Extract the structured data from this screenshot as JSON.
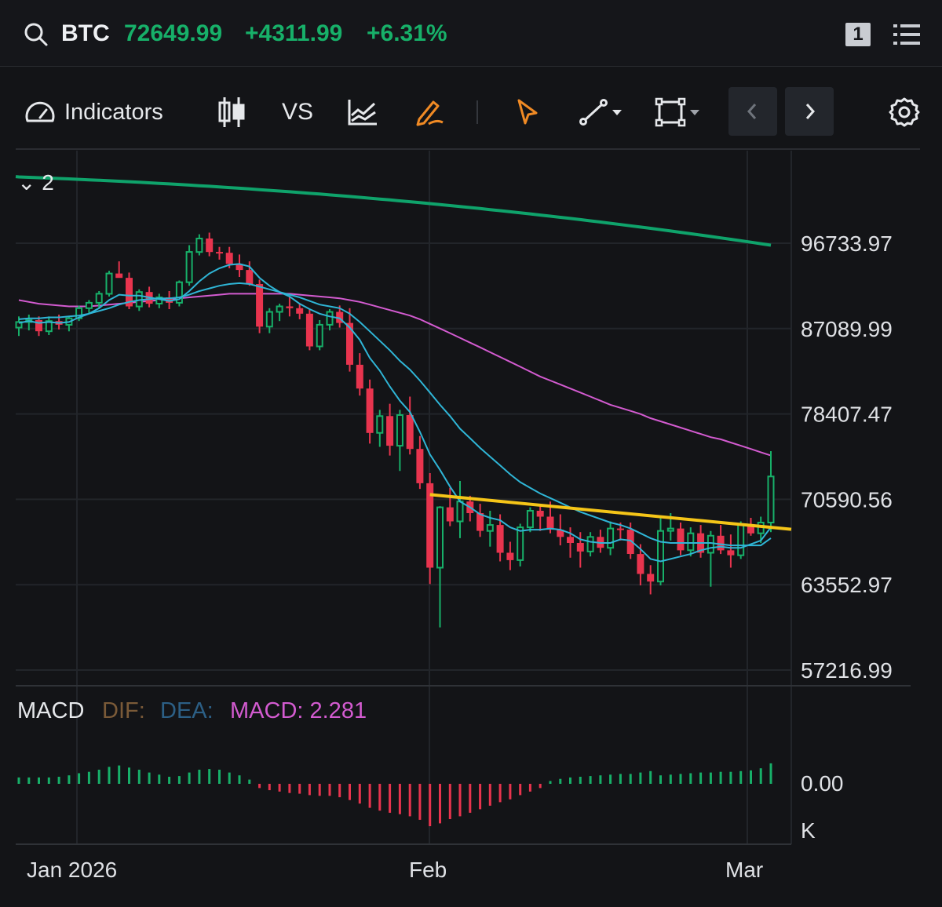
{
  "header": {
    "symbol": "BTC",
    "price": "72649.99",
    "change": "+4311.99",
    "change_pct": "+6.31%",
    "badge": "1",
    "up_color": "#17b069"
  },
  "toolbar": {
    "indicators_label": "Indicators",
    "compare_label": "VS",
    "active_tool_color": "#f08a24"
  },
  "collapse_label": "2",
  "chart_data": {
    "type": "candlestick",
    "symbol": "BTC",
    "price_axis_ticks": [
      "96733.97",
      "87089.99",
      "78407.47",
      "70590.56",
      "63552.97",
      "57216.99"
    ],
    "price_axis_scale": "log",
    "x_ticks": [
      "Jan 2026",
      "Feb",
      "Mar"
    ],
    "macd_axis_ticks": [
      "0.00",
      "K"
    ],
    "macd_legend": {
      "name": "MACD",
      "dif": "DIF:",
      "dea": "DEA:",
      "macd": "MACD: 2.281"
    },
    "colors": {
      "up": "#17b069",
      "down": "#e8344e",
      "ma_fast": "#2fb5d6",
      "ma_slow": "#d35bd0",
      "ma_long": "#0fa36b",
      "trendline": "#f5c518"
    },
    "candles": [
      [
        87200,
        88400,
        86300,
        87800
      ],
      [
        87800,
        88600,
        86900,
        88000
      ],
      [
        88000,
        88400,
        86300,
        86800
      ],
      [
        86800,
        88400,
        86400,
        87900
      ],
      [
        87900,
        88600,
        87000,
        87500
      ],
      [
        87500,
        88400,
        86800,
        88200
      ],
      [
        88200,
        89600,
        87900,
        89300
      ],
      [
        89300,
        90200,
        88700,
        89900
      ],
      [
        89900,
        91200,
        89400,
        90900
      ],
      [
        90900,
        93500,
        90600,
        93200
      ],
      [
        93200,
        94600,
        92900,
        92700
      ],
      [
        92700,
        93300,
        89200,
        89500
      ],
      [
        89500,
        91400,
        89000,
        91100
      ],
      [
        91100,
        91700,
        89400,
        89800
      ],
      [
        89800,
        90900,
        89300,
        90500
      ],
      [
        90500,
        91200,
        89200,
        89900
      ],
      [
        89900,
        92400,
        89500,
        92200
      ],
      [
        92200,
        96500,
        91800,
        95700
      ],
      [
        95700,
        97800,
        95300,
        97300
      ],
      [
        97300,
        98000,
        95200,
        95700
      ],
      [
        95700,
        96300,
        94800,
        95600
      ],
      [
        95600,
        96300,
        93800,
        94300
      ],
      [
        94300,
        95400,
        92800,
        93600
      ],
      [
        93600,
        94600,
        91800,
        92000
      ],
      [
        92000,
        92500,
        86600,
        87300
      ],
      [
        87300,
        89300,
        86600,
        88900
      ],
      [
        88900,
        89800,
        87900,
        89500
      ],
      [
        89500,
        90500,
        88400,
        89300
      ],
      [
        89300,
        89800,
        88100,
        88700
      ],
      [
        88700,
        89200,
        84800,
        85200
      ],
      [
        85200,
        88000,
        84800,
        87500
      ],
      [
        87500,
        89200,
        86900,
        88900
      ],
      [
        88900,
        89600,
        87200,
        87700
      ],
      [
        87700,
        89300,
        82600,
        83300
      ],
      [
        83300,
        84500,
        80200,
        80900
      ],
      [
        80900,
        81800,
        75600,
        76600
      ],
      [
        76600,
        78800,
        75300,
        78200
      ],
      [
        78200,
        79400,
        74500,
        75400
      ],
      [
        75400,
        78800,
        73100,
        78300
      ],
      [
        78300,
        80100,
        74600,
        75100
      ],
      [
        75100,
        76300,
        71500,
        72000
      ],
      [
        72000,
        72900,
        63600,
        64900
      ],
      [
        64900,
        70000,
        60300,
        69900
      ],
      [
        69900,
        71600,
        68300,
        68700
      ],
      [
        68700,
        72200,
        67300,
        70400
      ],
      [
        70400,
        70900,
        68700,
        69400
      ],
      [
        69400,
        70200,
        67400,
        67900
      ],
      [
        67900,
        69600,
        66600,
        68400
      ],
      [
        68400,
        69300,
        65400,
        66100
      ],
      [
        66100,
        67000,
        64700,
        65500
      ],
      [
        65500,
        68500,
        65000,
        68200
      ],
      [
        68200,
        69900,
        67800,
        69600
      ],
      [
        69600,
        70100,
        67900,
        69100
      ],
      [
        69100,
        70400,
        67700,
        68000
      ],
      [
        68000,
        69300,
        66700,
        67400
      ],
      [
        67400,
        68200,
        65700,
        66900
      ],
      [
        66900,
        67800,
        64900,
        66200
      ],
      [
        66200,
        67800,
        65800,
        67400
      ],
      [
        67400,
        68000,
        66100,
        66500
      ],
      [
        66500,
        68700,
        65900,
        68100
      ],
      [
        68100,
        68600,
        67100,
        68000
      ],
      [
        68000,
        68600,
        65600,
        66000
      ],
      [
        66000,
        66800,
        63500,
        64400
      ],
      [
        64400,
        65100,
        62800,
        63800
      ],
      [
        63800,
        69100,
        63500,
        67900
      ],
      [
        67900,
        69400,
        67100,
        68100
      ],
      [
        68100,
        68600,
        65900,
        66300
      ],
      [
        66300,
        68200,
        65800,
        67700
      ],
      [
        67700,
        68400,
        65700,
        66100
      ],
      [
        66100,
        67900,
        63400,
        67500
      ],
      [
        67500,
        68400,
        66000,
        66300
      ],
      [
        66300,
        67600,
        64900,
        65900
      ],
      [
        65900,
        68700,
        65600,
        68400
      ],
      [
        68400,
        69000,
        67500,
        67700
      ],
      [
        67700,
        69100,
        66900,
        68600
      ],
      [
        68600,
        74900,
        67800,
        72600
      ]
    ],
    "ma_fast": [
      87700,
      87900,
      87700,
      87800,
      87700,
      87800,
      88300,
      88700,
      89300,
      90200,
      90800,
      90700,
      90700,
      90500,
      90300,
      90100,
      90300,
      91200,
      92300,
      93200,
      93800,
      94200,
      94300,
      94000,
      92700,
      91800,
      91100,
      90600,
      89800,
      89200,
      88700,
      88400,
      88200,
      87200,
      85900,
      84000,
      82700,
      81100,
      79700,
      78600,
      76700,
      74600,
      73200,
      71700,
      70400,
      69900,
      69300,
      69000,
      68800,
      68200,
      67900,
      68000,
      68000,
      68100,
      68000,
      67700,
      67200,
      67000,
      66900,
      66900,
      67200,
      67100,
      66400,
      65600,
      65400,
      65600,
      65800,
      66000,
      66300,
      66500,
      66600,
      66500,
      66500,
      66800,
      67100,
      68200
    ],
    "ma_mid": [
      88100,
      88200,
      88200,
      88300,
      88300,
      88400,
      88500,
      88700,
      89000,
      89300,
      89700,
      90000,
      90200,
      90300,
      90400,
      90400,
      90500,
      90800,
      91200,
      91500,
      91800,
      92000,
      92100,
      92000,
      91700,
      91400,
      91100,
      90800,
      90500,
      90100,
      89700,
      89500,
      89300,
      88700,
      87800,
      86800,
      85800,
      84800,
      83700,
      82800,
      81700,
      80500,
      79300,
      78200,
      77000,
      76100,
      75200,
      74400,
      73600,
      72800,
      72100,
      71600,
      71100,
      70700,
      70300,
      69900,
      69500,
      69200,
      68900,
      68600,
      68400,
      68100,
      67700,
      67300,
      67000,
      66900,
      66900,
      66900,
      66900,
      66900,
      66800,
      66700,
      66700,
      66700,
      66700,
      67300
    ],
    "ma_slow": [
      90200,
      90000,
      89800,
      89700,
      89600,
      89500,
      89500,
      89500,
      89600,
      89700,
      89800,
      89900,
      90000,
      90100,
      90200,
      90300,
      90400,
      90500,
      90600,
      90700,
      90800,
      90900,
      90900,
      90900,
      90900,
      90900,
      90900,
      90900,
      90800,
      90700,
      90600,
      90500,
      90400,
      90200,
      90000,
      89700,
      89400,
      89100,
      88800,
      88500,
      88100,
      87600,
      87100,
      86600,
      86100,
      85600,
      85100,
      84600,
      84100,
      83600,
      83100,
      82600,
      82100,
      81700,
      81300,
      80900,
      80500,
      80100,
      79700,
      79300,
      79000,
      78700,
      78400,
      78000,
      77700,
      77400,
      77100,
      76800,
      76500,
      76200,
      76000,
      75700,
      75400,
      75100,
      74800,
      74500
    ],
    "ma_long_start": 105000,
    "ma_long_end": 96500,
    "trendline": {
      "start": [
        41,
        71000
      ],
      "end": [
        75,
        68200
      ]
    },
    "macd_hist": [
      0.9,
      0.9,
      0.9,
      0.9,
      1,
      1.2,
      1.5,
      1.7,
      2,
      2.4,
      2.6,
      2.3,
      2,
      1.6,
      1.3,
      1,
      1.1,
      1.6,
      2,
      2.1,
      2,
      1.6,
      1.2,
      0.6,
      -0.6,
      -0.9,
      -1.1,
      -1.3,
      -1.4,
      -1.6,
      -1.7,
      -1.7,
      -1.9,
      -2.3,
      -2.8,
      -3.4,
      -3.8,
      -4.1,
      -4.3,
      -4.6,
      -5.1,
      -6,
      -5.6,
      -5,
      -4.6,
      -4.1,
      -3.6,
      -3.1,
      -2.6,
      -2.2,
      -1.6,
      -1.1,
      -0.6,
      0.4,
      0.7,
      0.9,
      1,
      1.1,
      1.2,
      1.3,
      1.4,
      1.4,
      1.6,
      1.8,
      1.2,
      1.3,
      1.4,
      1.5,
      1.6,
      1.6,
      1.7,
      1.7,
      1.8,
      1.9,
      2.2,
      2.9
    ]
  }
}
